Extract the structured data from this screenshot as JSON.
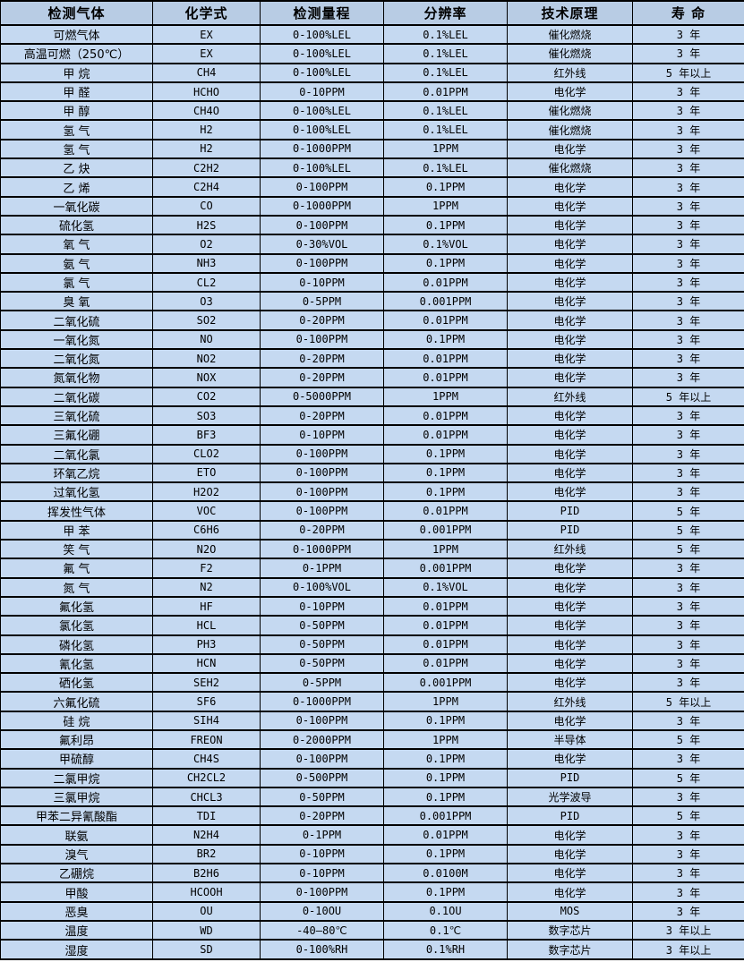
{
  "table": {
    "headers": [
      "检测气体",
      "化学式",
      "检测量程",
      "分辨率",
      "技术原理",
      "寿 命"
    ],
    "column_keys": [
      "gas-name",
      "chemical-formula",
      "detection-range",
      "resolution",
      "technology",
      "lifespan"
    ],
    "rows": [
      [
        "可燃气体",
        "EX",
        "0-100%LEL",
        "0.1%LEL",
        "催化燃烧",
        "3 年"
      ],
      [
        "高温可燃（250℃）",
        "EX",
        "0-100%LEL",
        "0.1%LEL",
        "催化燃烧",
        "3 年"
      ],
      [
        "甲 烷",
        "CH4",
        "0-100%LEL",
        "0.1%LEL",
        "红外线",
        "5 年以上"
      ],
      [
        "甲 醛",
        "HCHO",
        "0-10PPM",
        "0.01PPM",
        "电化学",
        "3 年"
      ],
      [
        "甲 醇",
        "CH4O",
        "0-100%LEL",
        "0.1%LEL",
        "催化燃烧",
        "3 年"
      ],
      [
        "氢 气",
        "H2",
        "0-100%LEL",
        "0.1%LEL",
        "催化燃烧",
        "3 年"
      ],
      [
        "氢 气",
        "H2",
        "0-1000PPM",
        "1PPM",
        "电化学",
        "3 年"
      ],
      [
        "乙 炔",
        "C2H2",
        "0-100%LEL",
        "0.1%LEL",
        "催化燃烧",
        "3 年"
      ],
      [
        "乙 烯",
        "C2H4",
        "0-100PPM",
        "0.1PPM",
        "电化学",
        "3 年"
      ],
      [
        "一氧化碳",
        "CO",
        "0-1000PPM",
        "1PPM",
        "电化学",
        "3 年"
      ],
      [
        "硫化氢",
        "H2S",
        "0-100PPM",
        "0.1PPM",
        "电化学",
        "3 年"
      ],
      [
        "氧 气",
        "O2",
        "0-30%VOL",
        "0.1%VOL",
        "电化学",
        "3 年"
      ],
      [
        "氨 气",
        "NH3",
        "0-100PPM",
        "0.1PPM",
        "电化学",
        "3 年"
      ],
      [
        "氯 气",
        "CL2",
        "0-10PPM",
        "0.01PPM",
        "电化学",
        "3 年"
      ],
      [
        "臭 氧",
        "O3",
        "0-5PPM",
        "0.001PPM",
        "电化学",
        "3 年"
      ],
      [
        "二氧化硫",
        "SO2",
        "0-20PPM",
        "0.01PPM",
        "电化学",
        "3 年"
      ],
      [
        "一氧化氮",
        "NO",
        "0-100PPM",
        "0.1PPM",
        "电化学",
        "3 年"
      ],
      [
        "二氧化氮",
        "NO2",
        "0-20PPM",
        "0.01PPM",
        "电化学",
        "3 年"
      ],
      [
        "氮氧化物",
        "NOX",
        "0-20PPM",
        "0.01PPM",
        "电化学",
        "3 年"
      ],
      [
        "二氧化碳",
        "CO2",
        "0-5000PPM",
        "1PPM",
        "红外线",
        "5 年以上"
      ],
      [
        "三氧化硫",
        "SO3",
        "0-20PPM",
        "0.01PPM",
        "电化学",
        "3 年"
      ],
      [
        "三氟化硼",
        "BF3",
        "0-10PPM",
        "0.01PPM",
        "电化学",
        "3 年"
      ],
      [
        "二氧化氯",
        "CLO2",
        "0-100PPM",
        "0.1PPM",
        "电化学",
        "3 年"
      ],
      [
        "环氧乙烷",
        "ETO",
        "0-100PPM",
        "0.1PPM",
        "电化学",
        "3 年"
      ],
      [
        "过氧化氢",
        "H2O2",
        "0-100PPM",
        "0.1PPM",
        "电化学",
        "3 年"
      ],
      [
        "挥发性气体",
        "VOC",
        "0-100PPM",
        "0.01PPM",
        "PID",
        "5 年"
      ],
      [
        "甲 苯",
        "C6H6",
        "0-20PPM",
        "0.001PPM",
        "PID",
        "5 年"
      ],
      [
        "笑 气",
        "N2O",
        "0-1000PPM",
        "1PPM",
        "红外线",
        "5 年"
      ],
      [
        "氟 气",
        "F2",
        "0-1PPM",
        "0.001PPM",
        "电化学",
        "3 年"
      ],
      [
        "氮 气",
        "N2",
        "0-100%VOL",
        "0.1%VOL",
        "电化学",
        "3 年"
      ],
      [
        "氟化氢",
        "HF",
        "0-10PPM",
        "0.01PPM",
        "电化学",
        "3 年"
      ],
      [
        "氯化氢",
        "HCL",
        "0-50PPM",
        "0.01PPM",
        "电化学",
        "3 年"
      ],
      [
        "磷化氢",
        "PH3",
        "0-50PPM",
        "0.01PPM",
        "电化学",
        "3 年"
      ],
      [
        "氰化氢",
        "HCN",
        "0-50PPM",
        "0.01PPM",
        "电化学",
        "3 年"
      ],
      [
        "硒化氢",
        "SEH2",
        "0-5PPM",
        "0.001PPM",
        "电化学",
        "3 年"
      ],
      [
        "六氟化硫",
        "SF6",
        "0-1000PPM",
        "1PPM",
        "红外线",
        "5 年以上"
      ],
      [
        "硅 烷",
        "SIH4",
        "0-100PPM",
        "0.1PPM",
        "电化学",
        "3 年"
      ],
      [
        "氟利昂",
        "FREON",
        "0-2000PPM",
        "1PPM",
        "半导体",
        "5 年"
      ],
      [
        "甲硫醇",
        "CH4S",
        "0-100PPM",
        "0.1PPM",
        "电化学",
        "3 年"
      ],
      [
        "二氯甲烷",
        "CH2CL2",
        "0-500PPM",
        "0.1PPM",
        "PID",
        "5 年"
      ],
      [
        "三氯甲烷",
        "CHCL3",
        "0-50PPM",
        "0.1PPM",
        "光学波导",
        "3 年"
      ],
      [
        "甲苯二异氰酸酯",
        "TDI",
        "0-20PPM",
        "0.001PPM",
        "PID",
        "5 年"
      ],
      [
        "联氨",
        "N2H4",
        "0-1PPM",
        "0.01PPM",
        "电化学",
        "3 年"
      ],
      [
        "溴气",
        "BR2",
        "0-10PPM",
        "0.1PPM",
        "电化学",
        "3 年"
      ],
      [
        "乙硼烷",
        "B2H6",
        "0-10PPM",
        "0.0100M",
        "电化学",
        "3 年"
      ],
      [
        "甲酸",
        "HCOOH",
        "0-100PPM",
        "0.1PPM",
        "电化学",
        "3 年"
      ],
      [
        "恶臭",
        "OU",
        "0-10OU",
        "0.1OU",
        "MOS",
        "3 年"
      ],
      [
        "温度",
        "WD",
        "-40—80℃",
        "0.1℃",
        "数字芯片",
        "3 年以上"
      ],
      [
        "湿度",
        "SD",
        "0-100%RH",
        "0.1%RH",
        "数字芯片",
        "3 年以上"
      ]
    ],
    "colors": {
      "header_bg": "#b8cce4",
      "row_bg": "#c5d9f1",
      "border": "#000000",
      "text": "#000000"
    }
  }
}
